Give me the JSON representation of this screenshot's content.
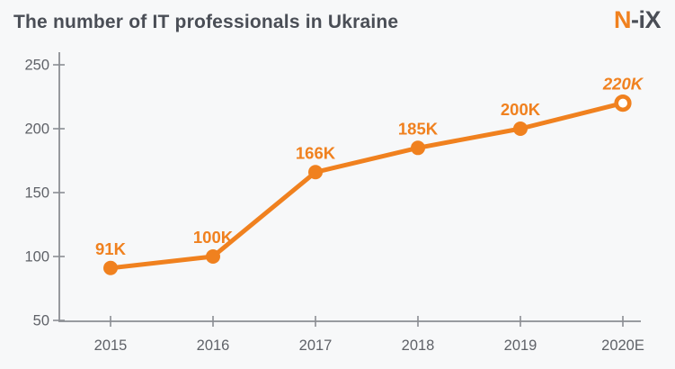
{
  "header": {
    "title": "The number of IT professionals in Ukraine",
    "logo_part1": "N",
    "logo_part2": "-iX"
  },
  "colors": {
    "accent": "#f0811f",
    "ink": "#4a4e56",
    "tick_label": "#5f6268",
    "axis": "#8b8e93",
    "background": "#f7f8f9",
    "open_marker_fill": "#ffffff"
  },
  "chart_data": {
    "type": "line",
    "title": "The number of IT professionals in Ukraine",
    "xlabel": "",
    "ylabel": "",
    "categories": [
      "2015",
      "2016",
      "2017",
      "2018",
      "2019",
      "2020E"
    ],
    "values": [
      91,
      100,
      166,
      185,
      200,
      220
    ],
    "point_labels": [
      "91K",
      "100K",
      "166K",
      "185K",
      "200K",
      "220K"
    ],
    "ylim": [
      50,
      250
    ],
    "yticks": [
      50,
      100,
      150,
      200,
      250
    ],
    "grid": false,
    "legend": "none",
    "last_point_style": {
      "marker": "open-circle",
      "label_italic": true
    }
  }
}
